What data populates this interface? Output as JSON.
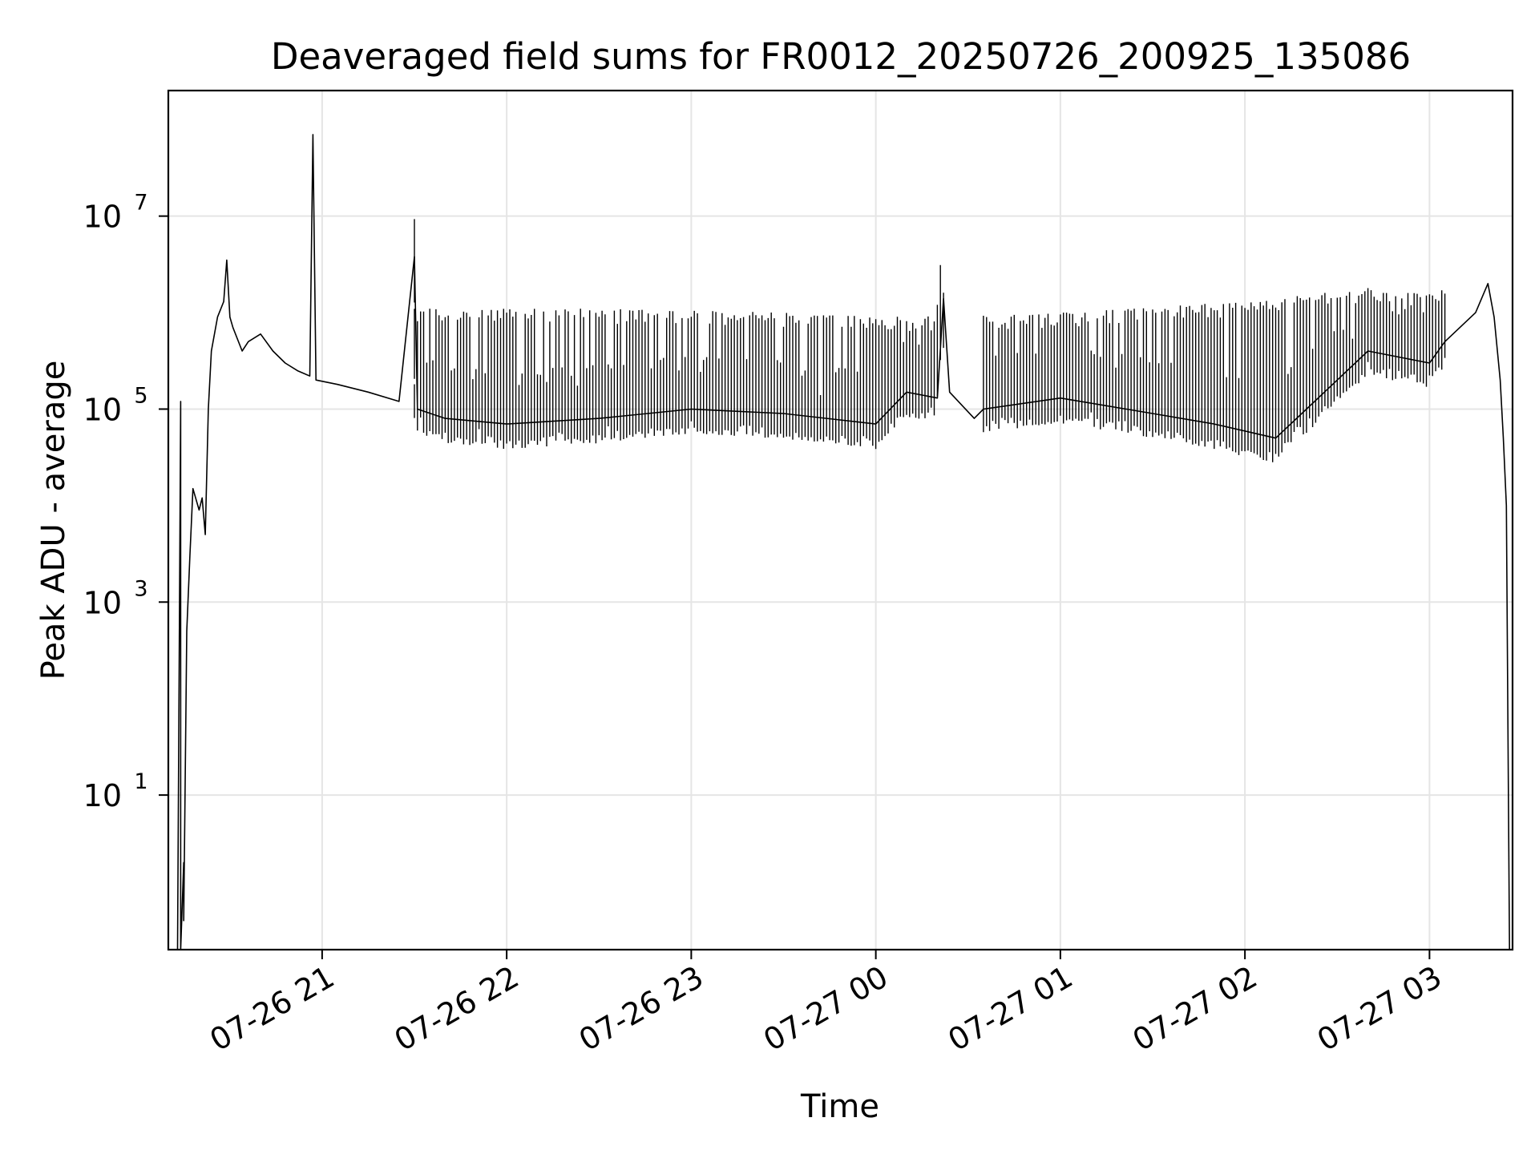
{
  "chart_data": {
    "type": "line",
    "title": "Deaveraged field sums for FR0012_20250726_200925_135086",
    "xlabel": "Time",
    "ylabel": "Peak ADU - average",
    "x_ticks": [
      "07-26 21",
      "07-26 22",
      "07-26 23",
      "07-27 00",
      "07-27 01",
      "07-27 02",
      "07-27 03"
    ],
    "y_ticks": [
      {
        "base": "10",
        "exp": "1",
        "value": 10
      },
      {
        "base": "10",
        "exp": "3",
        "value": 1000
      },
      {
        "base": "10",
        "exp": "5",
        "value": 100000
      },
      {
        "base": "10",
        "exp": "7",
        "value": 10000000
      }
    ],
    "xlim": [
      "2025-07-26 20:10",
      "2025-07-27 03:27"
    ],
    "ylim": [
      0.25,
      200000000
    ],
    "yscale": "log",
    "grid": true,
    "line_color": "#000000",
    "grid_color": "#e5e5e5",
    "series": [
      {
        "values": [
          [
            "2025-07-26 20:13",
            0.25
          ],
          [
            "2025-07-26 20:14",
            120000
          ],
          [
            "2025-07-26 20:14",
            0.25
          ],
          [
            "2025-07-26 20:15",
            2
          ],
          [
            "2025-07-26 20:15",
            0.5
          ],
          [
            "2025-07-26 20:16",
            500
          ],
          [
            "2025-07-26 20:17",
            3000
          ],
          [
            "2025-07-26 20:18",
            15000
          ],
          [
            "2025-07-26 20:20",
            9000
          ],
          [
            "2025-07-26 20:21",
            12000
          ],
          [
            "2025-07-26 20:22",
            5000
          ],
          [
            "2025-07-26 20:23",
            100000
          ],
          [
            "2025-07-26 20:24",
            400000
          ],
          [
            "2025-07-26 20:26",
            900000
          ],
          [
            "2025-07-26 20:28",
            1300000
          ],
          [
            "2025-07-26 20:29",
            3500000
          ],
          [
            "2025-07-26 20:30",
            900000
          ],
          [
            "2025-07-26 20:31",
            700000
          ],
          [
            "2025-07-26 20:34",
            400000
          ],
          [
            "2025-07-26 20:36",
            500000
          ],
          [
            "2025-07-26 20:40",
            600000
          ],
          [
            "2025-07-26 20:44",
            400000
          ],
          [
            "2025-07-26 20:48",
            300000
          ],
          [
            "2025-07-26 20:52",
            250000
          ],
          [
            "2025-07-26 20:56",
            220000
          ],
          [
            "2025-07-26 20:57",
            70000000
          ],
          [
            "2025-07-26 20:58",
            200000
          ],
          [
            "2025-07-26 21:05",
            180000
          ],
          [
            "2025-07-26 21:15",
            150000
          ],
          [
            "2025-07-26 21:25",
            120000
          ],
          [
            "2025-07-26 21:30",
            3800000
          ],
          [
            "2025-07-26 21:31",
            100000
          ],
          [
            "2025-07-26 21:40",
            80000
          ],
          [
            "2025-07-26 22:00",
            70000
          ],
          [
            "2025-07-26 22:30",
            80000
          ],
          [
            "2025-07-26 23:00",
            100000
          ],
          [
            "2025-07-26 23:30",
            90000
          ],
          [
            "2025-07-27 00:00",
            70000
          ],
          [
            "2025-07-27 00:10",
            150000
          ],
          [
            "2025-07-27 00:20",
            130000
          ],
          [
            "2025-07-27 00:22",
            1400000
          ],
          [
            "2025-07-27 00:24",
            150000
          ],
          [
            "2025-07-27 00:32",
            80000
          ],
          [
            "2025-07-27 00:35",
            100000
          ],
          [
            "2025-07-27 01:00",
            130000
          ],
          [
            "2025-07-27 01:30",
            90000
          ],
          [
            "2025-07-27 01:50",
            70000
          ],
          [
            "2025-07-27 02:10",
            50000
          ],
          [
            "2025-07-27 02:20",
            100000
          ],
          [
            "2025-07-27 02:40",
            400000
          ],
          [
            "2025-07-27 03:00",
            300000
          ],
          [
            "2025-07-27 03:05",
            500000
          ],
          [
            "2025-07-27 03:15",
            1000000
          ],
          [
            "2025-07-27 03:19",
            2000000
          ],
          [
            "2025-07-27 03:21",
            900000
          ],
          [
            "2025-07-27 03:23",
            200000
          ],
          [
            "2025-07-27 03:24",
            50000
          ],
          [
            "2025-07-27 03:25",
            10000
          ],
          [
            "2025-07-27 03:26",
            0.25
          ]
        ]
      }
    ],
    "band": {
      "start": "2025-07-26 21:30",
      "end": "2025-07-27 03:05",
      "gaps": [
        [
          "2025-07-27 00:23",
          "2025-07-27 00:35"
        ]
      ],
      "upper": [
        [
          "2025-07-26 21:30",
          1100000
        ],
        [
          "2025-07-26 22:30",
          1100000
        ],
        [
          "2025-07-26 23:30",
          1000000
        ],
        [
          "2025-07-27 00:10",
          900000
        ],
        [
          "2025-07-27 01:00",
          1000000
        ],
        [
          "2025-07-27 02:00",
          1300000
        ],
        [
          "2025-07-27 02:40",
          1800000
        ],
        [
          "2025-07-27 03:05",
          1500000
        ]
      ]
    }
  }
}
